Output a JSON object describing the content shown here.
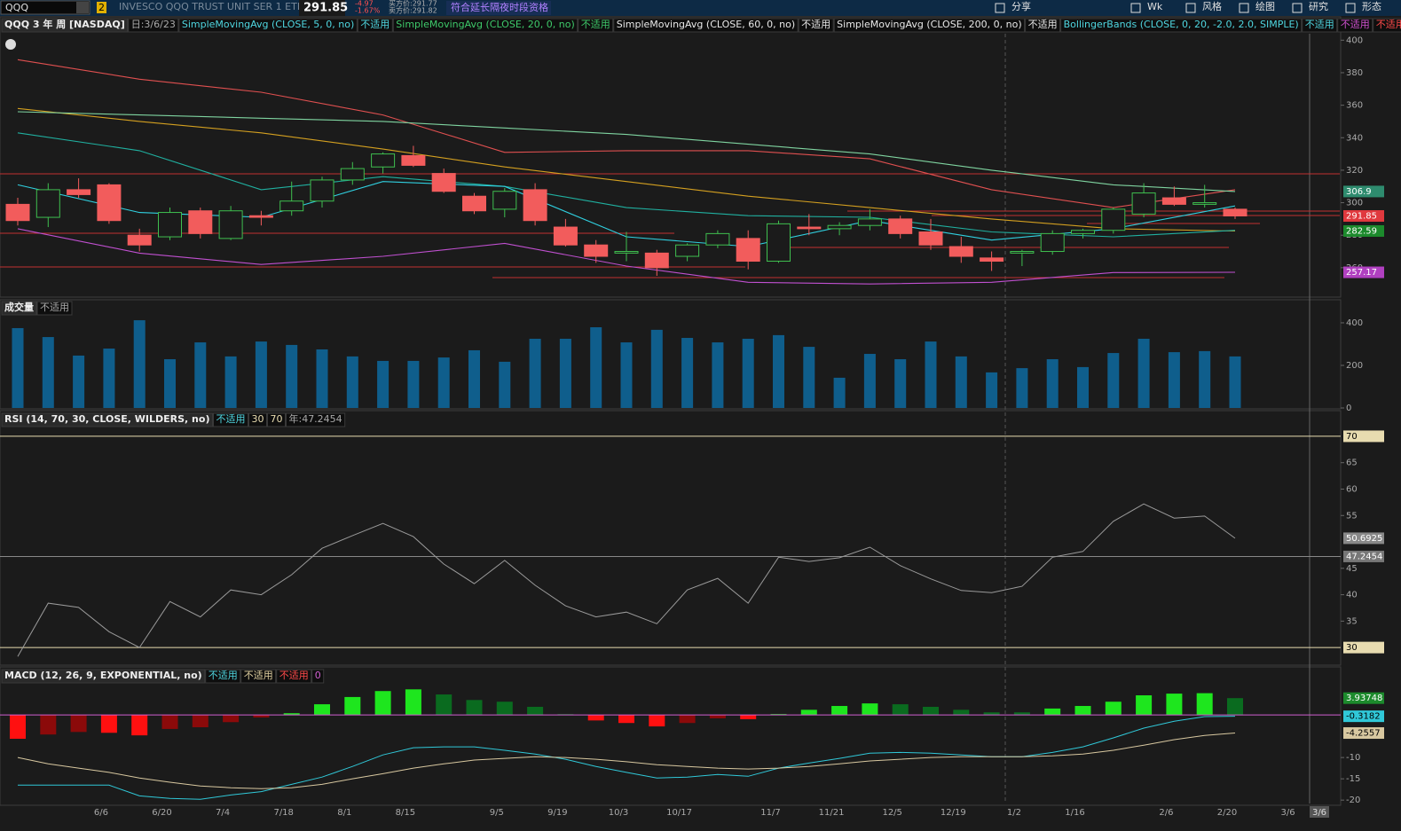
{
  "toolbar": {
    "symbol": "QQQ",
    "badge": "2",
    "description": "INVESCO QQQ TRUST UNIT SER 1 ETF",
    "last": 291.85,
    "change": -4.97,
    "change_pct": {
      "value": -1.67,
      "label": "-1.67%"
    },
    "bid_label": "买方价:291.77",
    "ask_label": "卖方价:291.82",
    "note": "符合延长隔夜时段资格",
    "buttons": [
      "分享",
      "Wk",
      "风格",
      "绘图",
      "研究",
      "形态"
    ]
  },
  "chart_data": [
    {
      "type": "candlestick",
      "title": "QQQ 3 年 周 [NASDAQ]",
      "date_label": "日:3/6/23",
      "legend": [
        {
          "text": "SimpleMovingAvg (CLOSE, 5, 0, no)",
          "color": "#4fd6e0"
        },
        {
          "text": "不适用",
          "color": "#4fd6e0"
        },
        {
          "text": "SimpleMovingAvg (CLOSE, 20, 0, no)",
          "color": "#3ec96a"
        },
        {
          "text": "不适用",
          "color": "#3ec96a"
        },
        {
          "text": "SimpleMovingAvg (CLOSE, 60, 0, no)",
          "color": "#e8e8e8"
        },
        {
          "text": "不适用",
          "color": "#e8e8e8"
        },
        {
          "text": "SimpleMovingAvg (CLOSE, 200, 0, no)",
          "color": "#e8e8e8"
        },
        {
          "text": "不适用",
          "color": "#e8e8e8"
        },
        {
          "text": "BollingerBands (CLOSE, 0, 20, -2.0, 2.0, SIMPLE)",
          "color": "#4fd6e0"
        },
        {
          "text": "不适用",
          "color": "#4fd6e0"
        },
        {
          "text": "不适用",
          "color": "#d050d0"
        },
        {
          "text": "不适用",
          "color": "#ff4a4a"
        }
      ],
      "open": [
        299,
        291,
        308,
        311,
        280,
        279,
        295,
        278,
        292,
        295,
        301,
        314,
        322,
        329,
        318,
        304,
        296,
        308,
        285,
        274,
        269,
        269,
        267,
        274,
        278,
        264,
        285,
        284,
        286,
        290,
        282,
        273,
        266,
        269,
        270,
        281,
        283,
        293,
        303,
        299,
        296
      ],
      "high": [
        303,
        312,
        315,
        312,
        284,
        297,
        297,
        298,
        295,
        313,
        316,
        325,
        331,
        335,
        321,
        306,
        309,
        312,
        290,
        277,
        282,
        271,
        275,
        283,
        283,
        289,
        293,
        288,
        296,
        292,
        290,
        279,
        270,
        271,
        283,
        284,
        297,
        312,
        310,
        311,
        297
      ],
      "low": [
        286,
        285,
        303,
        287,
        270,
        277,
        278,
        277,
        286,
        292,
        297,
        311,
        318,
        322,
        306,
        293,
        291,
        286,
        273,
        263,
        264,
        255,
        264,
        272,
        259,
        263,
        280,
        280,
        283,
        278,
        271,
        263,
        258,
        261,
        268,
        278,
        281,
        291,
        298,
        297,
        290
      ],
      "close": [
        289,
        308,
        305,
        289,
        274,
        294,
        281,
        295,
        291,
        301,
        314,
        321,
        330,
        323,
        307,
        295,
        307,
        289,
        274,
        267,
        270,
        260,
        274,
        281,
        264,
        287,
        284,
        286,
        290,
        281,
        274,
        267,
        264,
        270,
        281,
        283,
        296,
        306,
        299,
        300,
        291.85
      ],
      "up_color": "#3fbf4f",
      "down_color": "#f25c5c",
      "last_color": "#e0393e",
      "lines": {
        "x": [
          0,
          4,
          8,
          12,
          16,
          20,
          24,
          28,
          32,
          36,
          40
        ],
        "series": [
          {
            "color": "#e05050",
            "values": [
              388,
              376,
              368,
              354,
              331,
              332,
              332,
              327,
              308,
              297,
              308
            ]
          },
          {
            "color": "#c050d0",
            "values": [
              284,
              269,
              262,
              267,
              275,
              261,
              251,
              250,
              251,
              257,
              257.17
            ],
            "last_marker": true,
            "marker_color": "#b040c0"
          },
          {
            "color": "#d4a020",
            "values": [
              358,
              350,
              343,
              333,
              322,
              313,
              304,
              297,
              290,
              284,
              282.59
            ],
            "last_marker": true,
            "marker_color": "#1c8a2c"
          },
          {
            "color": "#7fd4a0",
            "values": [
              356,
              354,
              352,
              350,
              346,
              342,
              336,
              330,
              320,
              311,
              306.9
            ],
            "last_marker": true,
            "marker_color": "#2e8b6e"
          },
          {
            "color": "#20b0a0",
            "values": [
              343,
              332,
              308,
              316,
              310,
              297,
              292,
              291,
              282,
              279,
              283
            ]
          },
          {
            "color": "#30d0e0",
            "values": [
              311,
              294,
              291,
              313,
              310,
              279,
              273,
              289,
              277,
              284,
              298
            ]
          }
        ]
      },
      "ylim": [
        243,
        404
      ],
      "yticks": [
        260,
        280,
        300,
        320,
        340,
        360,
        380,
        400
      ]
    },
    {
      "type": "bar",
      "title": "成交量",
      "legend": [
        {
          "text": "不适用",
          "color": "#aaaaaa"
        }
      ],
      "color": "#0f5e8c",
      "values": [
        375,
        333,
        246,
        279,
        412,
        229,
        308,
        242,
        312,
        296,
        275,
        242,
        221,
        221,
        237,
        271,
        217,
        325,
        325,
        379,
        308,
        367,
        329,
        308,
        325,
        342,
        287,
        142,
        254,
        229,
        312,
        242,
        167,
        187,
        229,
        192,
        258,
        325,
        262,
        267,
        242
      ],
      "ylim": [
        0,
        429
      ],
      "yticks": [
        0,
        200,
        400
      ]
    },
    {
      "type": "line",
      "title": "RSI (14, 70, 30, CLOSE, WILDERS, no)",
      "legend": [
        {
          "text": "不适用",
          "color": "#4fd6e0"
        }
      ],
      "oversold": 30,
      "overbought": 70,
      "avg": 47.2454,
      "avg_label": "年:47.2454",
      "color": "#9a9a9a",
      "level_color": "#e8dcb0",
      "values": [
        28.3,
        38.4,
        37.6,
        33,
        30,
        38.7,
        35.8,
        40.9,
        40,
        43.8,
        48.8,
        51.2,
        53.5,
        51,
        45.8,
        42.1,
        46.5,
        41.8,
        37.9,
        35.8,
        36.7,
        34.5,
        40.9,
        43.1,
        38.4,
        47.1,
        46.3,
        47,
        49,
        45.5,
        43,
        40.8,
        40.4,
        41.6,
        47.1,
        48.2,
        53.9,
        57.2,
        54.5,
        54.9,
        50.6925
      ],
      "ylim": [
        27,
        71.5
      ],
      "yticks": [
        35,
        40,
        45,
        55,
        60,
        65
      ]
    },
    {
      "type": "macd",
      "title": "MACD (12, 26, 9, EXPONENTIAL, no)",
      "legend": [
        {
          "text": "不适用",
          "color": "#4fd6e0"
        },
        {
          "text": "不适用",
          "color": "#e0d0a0"
        },
        {
          "text": "不适用",
          "color": "#ff4a4a"
        }
      ],
      "zero_line": 0,
      "zero_color": "#d060d0",
      "categories": [
        null,
        null,
        null,
        "6/6",
        null,
        "6/20",
        null,
        "7/4",
        null,
        "7/18",
        null,
        "8/1",
        null,
        "8/15",
        null,
        null,
        "9/5",
        null,
        "9/19",
        null,
        "10/3",
        null,
        "10/17",
        null,
        null,
        "11/7",
        null,
        "11/21",
        null,
        "12/5",
        null,
        "12/19",
        null,
        "1/2",
        null,
        "1/16",
        null,
        null,
        "2/6",
        null,
        "2/20",
        null,
        "3/6"
      ],
      "cursor_label": "3/6",
      "values": [
        -5.6,
        -4.6,
        -4,
        -4.2,
        -4.8,
        -3.3,
        -2.9,
        -1.7,
        -0.6,
        0.4,
        2.5,
        4.2,
        5.6,
        6,
        4.8,
        3.5,
        3.1,
        1.9,
        0.2,
        -1.3,
        -1.9,
        -2.7,
        -1.9,
        -0.8,
        -1,
        0.2,
        1.2,
        2.1,
        2.7,
        2.5,
        1.9,
        1.2,
        0.6,
        0.6,
        1.5,
        2.1,
        3.1,
        4.6,
        5,
        5.1,
        3.93748,
        null,
        null
      ],
      "value_line": [
        -16.5,
        -16.5,
        -16.5,
        -16.5,
        -19,
        -19.6,
        -19.8,
        -18.8,
        -18,
        -16.3,
        -14.6,
        -12.1,
        -9.4,
        -7.7,
        -7.5,
        -7.5,
        -8.3,
        -9.2,
        -10.4,
        -12.1,
        -13.5,
        -14.8,
        -14.6,
        -14,
        -14.4,
        -12.5,
        -11.3,
        -10.2,
        -9,
        -8.8,
        -9,
        -9.4,
        -9.8,
        -9.8,
        -8.8,
        -7.5,
        -5.4,
        -3.1,
        -1.5,
        -0.4,
        -0.3182,
        null,
        null
      ],
      "avg_line": [
        -10,
        -11.5,
        -12.5,
        -13.5,
        -14.8,
        -15.8,
        -16.7,
        -17.1,
        -17.3,
        -17.1,
        -16.3,
        -15,
        -13.8,
        -12.5,
        -11.5,
        -10.6,
        -10.2,
        -9.8,
        -10,
        -10.4,
        -11,
        -11.7,
        -12.1,
        -12.5,
        -12.7,
        -12.5,
        -12.1,
        -11.5,
        -10.8,
        -10.4,
        -10,
        -9.8,
        -9.8,
        -9.8,
        -9.6,
        -9.2,
        -8.3,
        -7.1,
        -5.8,
        -4.8,
        -4.2557,
        null,
        null
      ],
      "colors": {
        "up_pos": "#1ee61e",
        "down_pos": "#0a6b1f",
        "down_neg": "#ff1010",
        "up_neg": "#8b0a0a",
        "value": "#30c8d8",
        "avg": "#d8c8a0"
      },
      "ylim": [
        -20.8,
        7.1
      ],
      "yticks": [
        -20,
        -15,
        -10
      ]
    }
  ]
}
